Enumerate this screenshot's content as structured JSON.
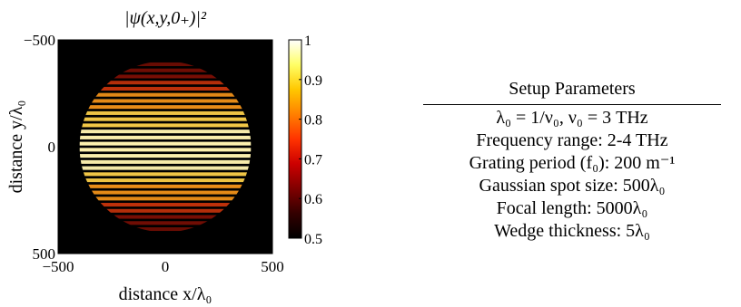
{
  "chart_data": {
    "type": "heatmap",
    "title": "|ψ(x,y,0₊)|²",
    "xlabel": "distance x/λ₀",
    "ylabel": "distance y/λ₀",
    "xlim": [
      -500,
      500
    ],
    "ylim": [
      -500,
      500
    ],
    "y_axis_direction": "top-to-bottom",
    "x_ticks": [
      "−500",
      "0",
      "500"
    ],
    "y_ticks": [
      "−500",
      "0",
      "500"
    ],
    "colorbar": {
      "range": [
        0.5,
        1
      ],
      "ticks": [
        "1",
        "0.9",
        "0.8",
        "0.7",
        "0.6",
        "0.5"
      ],
      "colormap": "hot",
      "colors": [
        "#000000",
        "#330000",
        "#800000",
        "#cc0000",
        "#ff3300",
        "#ff8000",
        "#ffc800",
        "#ffff66",
        "#ffffff"
      ]
    },
    "pattern": {
      "description": "circular Gaussian spot modulated by horizontal fringes",
      "spot_radius": 400,
      "fringe_count": 28,
      "background_value": 0.5,
      "peak_value": 1.0
    }
  },
  "setup": {
    "title": "Setup Parameters",
    "rows": [
      "λ₀ = 1/ν₀, ν₀ = 3 THz",
      "Frequency range: 2-4 THz",
      "Grating period (f₀): 200 m⁻¹",
      "Gaussian spot size: 500λ₀",
      "Focal length: 5000λ₀",
      "Wedge thickness: 5λ₀"
    ]
  }
}
